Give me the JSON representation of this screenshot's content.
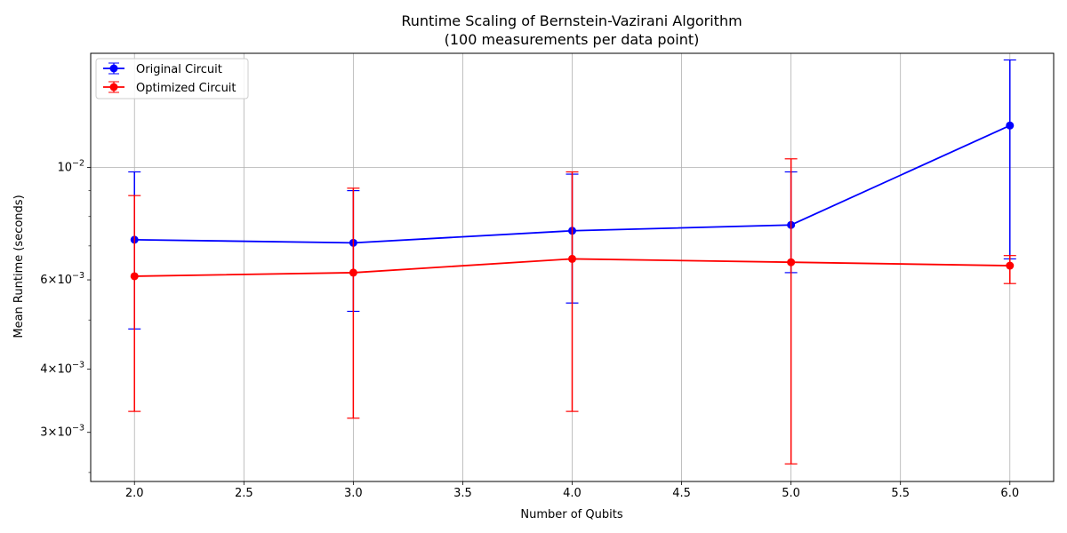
{
  "chart_data": {
    "type": "line",
    "title": "Runtime Scaling of Bernstein-Vazirani Algorithm",
    "subtitle": "(100 measurements per data point)",
    "xlabel": "Number of Qubits",
    "ylabel": "Mean Runtime (seconds)",
    "xlim": [
      1.8,
      6.2
    ],
    "ylim": [
      0.0024,
      0.0168
    ],
    "yscale": "log",
    "grid": true,
    "legend_position": "top-left",
    "x_ticks": [
      "2.0",
      "2.5",
      "3.0",
      "3.5",
      "4.0",
      "4.5",
      "5.0",
      "5.5",
      "6.0"
    ],
    "y_ticks": [
      {
        "value": 0.01,
        "mantissa": "",
        "exponent": "−2"
      },
      {
        "value": 0.006,
        "mantissa": "6",
        "exponent": "−3"
      },
      {
        "value": 0.004,
        "mantissa": "4",
        "exponent": "−3"
      },
      {
        "value": 0.003,
        "mantissa": "3",
        "exponent": "−3"
      }
    ],
    "x": [
      2,
      3,
      4,
      5,
      6
    ],
    "series": [
      {
        "name": "Original Circuit",
        "color": "#0000ff",
        "values": [
          0.0072,
          0.0071,
          0.0075,
          0.0077,
          0.0121
        ],
        "err_low": [
          0.0048,
          0.0052,
          0.0054,
          0.0062,
          0.0066
        ],
        "err_high": [
          0.0098,
          0.009,
          0.0097,
          0.0098,
          0.0163
        ]
      },
      {
        "name": "Optimized Circuit",
        "color": "#ff0000",
        "values": [
          0.0061,
          0.0062,
          0.0066,
          0.0065,
          0.0064
        ],
        "err_low": [
          0.0033,
          0.0032,
          0.0033,
          0.0026,
          0.0059
        ],
        "err_high": [
          0.0088,
          0.0091,
          0.0098,
          0.0104,
          0.0067
        ]
      }
    ]
  }
}
